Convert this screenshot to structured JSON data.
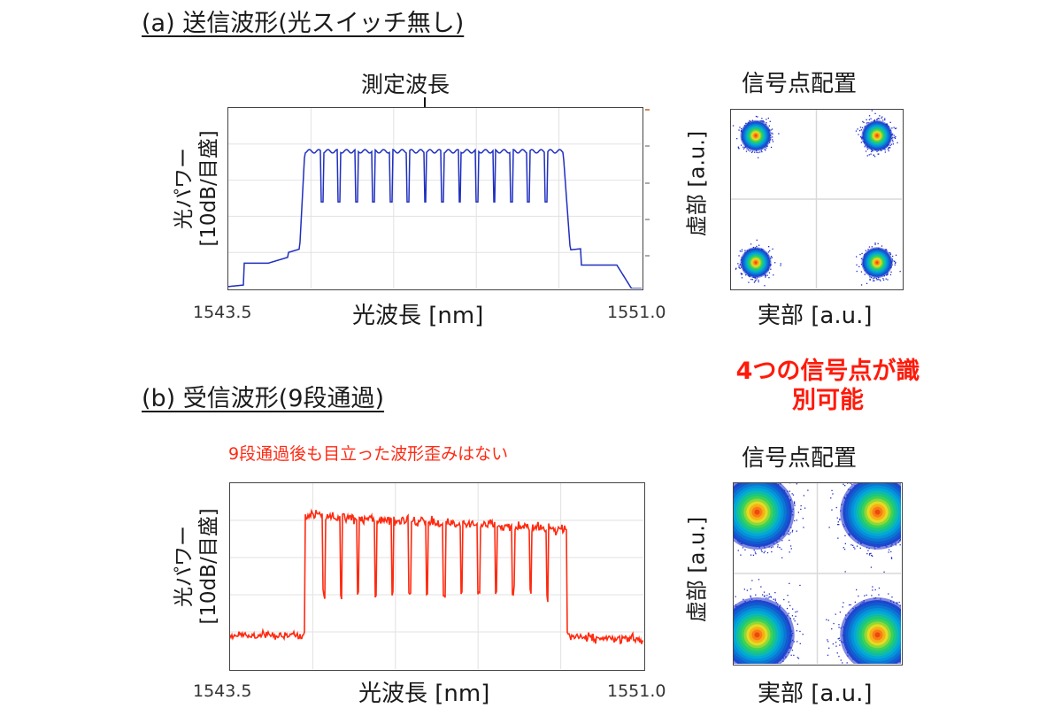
{
  "panel_a": {
    "title": "(a) 送信波形(光スイッチ無し)",
    "annotation": "測定波長",
    "y_label_line1": "光パワー",
    "y_label_line2": "[10dB/目盛]",
    "x_label": "光波長 [nm]",
    "x_min_label": "1543.5",
    "x_max_label": "1551.0",
    "constellation_title": "信号点配置",
    "iq_y_label": "虚部 [a.u.]",
    "iq_x_label": "実部 [a.u.]",
    "trace_color": "#1f2fbf"
  },
  "panel_b": {
    "title": "(b) 受信波形(9段通過)",
    "note": "9段通過後も目立った波形歪みはない",
    "highlight": "4つの信号点が識別可能",
    "y_label_line1": "光パワー",
    "y_label_line2": "[10dB/目盛]",
    "x_label": "光波長 [nm]",
    "x_min_label": "1543.5",
    "x_max_label": "1551.0",
    "constellation_title": "信号点配置",
    "iq_y_label": "虚部 [a.u.]",
    "iq_x_label": "実部 [a.u.]",
    "trace_color": "#ff2a10"
  },
  "chart_data": [
    {
      "type": "line",
      "x_range": [
        1543.5,
        1551.0
      ],
      "y_scale": "10 dB per division",
      "channels": 15,
      "grid": true
    },
    {
      "type": "scatter",
      "clusters": [
        [
          -1,
          1
        ],
        [
          1,
          1
        ],
        [
          -1,
          -1
        ],
        [
          1,
          -1
        ]
      ],
      "spread": "tight",
      "grid": true
    },
    {
      "type": "line",
      "x_range": [
        1543.5,
        1551.0
      ],
      "y_scale": "10 dB per division",
      "channels": 15,
      "grid": true
    },
    {
      "type": "scatter",
      "clusters": [
        [
          -1,
          1
        ],
        [
          1,
          1
        ],
        [
          -1,
          -1
        ],
        [
          1,
          -1
        ]
      ],
      "spread": "wide",
      "grid": true
    }
  ]
}
